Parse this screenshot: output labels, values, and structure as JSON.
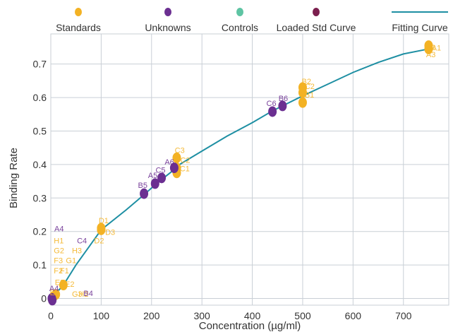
{
  "colors": {
    "standards": "#F3B224",
    "unknowns": "#6B2F91",
    "controls": "#5EC4A3",
    "loaded": "#7B1F4E",
    "curve": "#1E8FA3",
    "grid": "#C9CFD6",
    "axis": "#555555"
  },
  "legend": [
    {
      "key": "standards",
      "label": "Standards",
      "kind": "dot"
    },
    {
      "key": "unknowns",
      "label": "Unknowns",
      "kind": "dot"
    },
    {
      "key": "controls",
      "label": "Controls",
      "kind": "dot"
    },
    {
      "key": "loaded",
      "label": "Loaded Std Curve",
      "kind": "dot"
    },
    {
      "key": "curve",
      "label": "Fitting Curve",
      "kind": "line"
    }
  ],
  "chart_data": {
    "type": "scatter",
    "title": "",
    "xlabel": "Concentration (µg/ml)",
    "ylabel": "Binding Rate",
    "xlim": [
      0,
      790
    ],
    "ylim": [
      -0.02,
      0.79
    ],
    "xticks": [
      0,
      100,
      200,
      300,
      400,
      500,
      600,
      700
    ],
    "yticks": [
      0,
      0.1,
      0.2,
      0.3,
      0.4,
      0.5,
      0.6,
      0.7
    ],
    "ytick_labels": [
      "0",
      "0.1",
      "0.2",
      "0.3",
      "0.4",
      "0.5",
      "0.6",
      "0.7"
    ],
    "grid": true,
    "legend_position": "top",
    "fitting_curve": {
      "x": [
        0,
        10,
        25,
        50,
        100,
        150,
        185,
        200,
        220,
        245,
        250,
        300,
        350,
        400,
        440,
        460,
        500,
        550,
        600,
        650,
        700,
        750
      ],
      "y": [
        0,
        0.015,
        0.04,
        0.1,
        0.205,
        0.265,
        0.31,
        0.33,
        0.355,
        0.385,
        0.395,
        0.44,
        0.485,
        0.525,
        0.56,
        0.575,
        0.605,
        0.64,
        0.675,
        0.705,
        0.73,
        0.745
      ]
    },
    "points": [
      {
        "series": "standards",
        "x": 750,
        "y": 0.755
      },
      {
        "series": "standards",
        "x": 750,
        "y": 0.745
      },
      {
        "series": "standards",
        "x": 500,
        "y": 0.63
      },
      {
        "series": "standards",
        "x": 500,
        "y": 0.615
      },
      {
        "series": "standards",
        "x": 500,
        "y": 0.585
      },
      {
        "series": "standards",
        "x": 250,
        "y": 0.42
      },
      {
        "series": "standards",
        "x": 250,
        "y": 0.39
      },
      {
        "series": "standards",
        "x": 250,
        "y": 0.375
      },
      {
        "series": "standards",
        "x": 100,
        "y": 0.21
      },
      {
        "series": "standards",
        "x": 100,
        "y": 0.205
      },
      {
        "series": "standards",
        "x": 25,
        "y": 0.04
      },
      {
        "series": "standards",
        "x": 10,
        "y": 0.012
      },
      {
        "series": "standards",
        "x": 5,
        "y": 0.005
      },
      {
        "series": "unknowns",
        "x": 460,
        "y": 0.575
      },
      {
        "series": "unknowns",
        "x": 440,
        "y": 0.558
      },
      {
        "series": "unknowns",
        "x": 245,
        "y": 0.39
      },
      {
        "series": "unknowns",
        "x": 220,
        "y": 0.36
      },
      {
        "series": "unknowns",
        "x": 207,
        "y": 0.343
      },
      {
        "series": "unknowns",
        "x": 185,
        "y": 0.313
      },
      {
        "series": "unknowns",
        "x": 2,
        "y": 0.0
      },
      {
        "series": "unknowns",
        "x": 3,
        "y": -0.005
      }
    ],
    "point_labels": [
      {
        "text": "A1",
        "series": "standards",
        "x": 756,
        "y": 0.74
      },
      {
        "text": "A2",
        "series": "standards",
        "x": 745,
        "y": 0.742
      },
      {
        "text": "A3",
        "series": "standards",
        "x": 745,
        "y": 0.72
      },
      {
        "text": "B2",
        "series": "standards",
        "x": 498,
        "y": 0.64
      },
      {
        "text": "C2",
        "series": "standards",
        "x": 504,
        "y": 0.625
      },
      {
        "text": "B1",
        "series": "standards",
        "x": 504,
        "y": 0.6
      },
      {
        "text": "B6",
        "series": "unknowns",
        "x": 452,
        "y": 0.59
      },
      {
        "text": "C6",
        "series": "unknowns",
        "x": 428,
        "y": 0.575
      },
      {
        "text": "C3",
        "series": "standards",
        "x": 246,
        "y": 0.435
      },
      {
        "text": "C2",
        "series": "standards",
        "x": 257,
        "y": 0.405
      },
      {
        "text": "C1",
        "series": "standards",
        "x": 256,
        "y": 0.38
      },
      {
        "text": "A6",
        "series": "unknowns",
        "x": 226,
        "y": 0.4
      },
      {
        "text": "C5",
        "series": "unknowns",
        "x": 208,
        "y": 0.375
      },
      {
        "text": "A5",
        "series": "unknowns",
        "x": 193,
        "y": 0.36
      },
      {
        "text": "B5",
        "series": "unknowns",
        "x": 173,
        "y": 0.33
      },
      {
        "text": "D1",
        "series": "standards",
        "x": 95,
        "y": 0.225
      },
      {
        "text": "D3",
        "series": "standards",
        "x": 108,
        "y": 0.19
      },
      {
        "text": "D2",
        "series": "standards",
        "x": 86,
        "y": 0.165
      },
      {
        "text": "A4",
        "series": "unknowns",
        "x": 7,
        "y": 0.2
      },
      {
        "text": "H1",
        "series": "standards",
        "x": 6,
        "y": 0.165
      },
      {
        "text": "C4",
        "series": "unknowns",
        "x": 52,
        "y": 0.165
      },
      {
        "text": "H3",
        "series": "standards",
        "x": 42,
        "y": 0.135
      },
      {
        "text": "G2",
        "series": "standards",
        "x": 6,
        "y": 0.135
      },
      {
        "text": "G1",
        "series": "standards",
        "x": 30,
        "y": 0.105
      },
      {
        "text": "F3",
        "series": "standards",
        "x": 6,
        "y": 0.105
      },
      {
        "text": "F1",
        "series": "standards",
        "x": 18,
        "y": 0.075
      },
      {
        "text": "F2",
        "series": "standards",
        "x": 6,
        "y": 0.075
      },
      {
        "text": "G3",
        "series": "standards",
        "x": 42,
        "y": 0.005
      },
      {
        "text": "H2",
        "series": "standards",
        "x": 55,
        "y": 0.005
      },
      {
        "text": "B4",
        "series": "unknowns",
        "x": 65,
        "y": 0.007
      },
      {
        "text": "E2",
        "series": "standards",
        "x": 28,
        "y": 0.035
      },
      {
        "text": "E3",
        "series": "standards",
        "x": 8,
        "y": 0.04
      },
      {
        "text": "E1",
        "series": "standards",
        "x": -2,
        "y": 0.01
      },
      {
        "text": "A4",
        "series": "unknowns",
        "x": -3,
        "y": 0.022
      }
    ]
  }
}
